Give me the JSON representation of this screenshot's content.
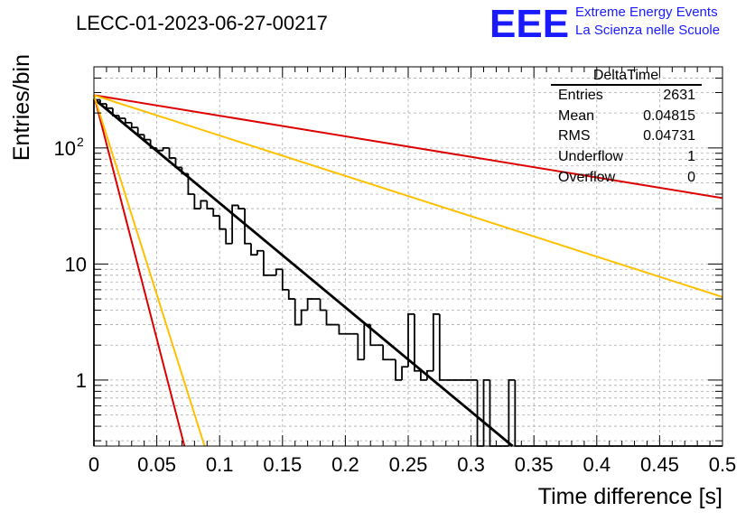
{
  "header": {
    "run_title": "LECC-01-2023-06-27-00217",
    "logo_text": "EEE",
    "logo_line1": "Extreme Energy Events",
    "logo_line2": "La Scienza nelle Scuole",
    "logo_color": "#1a1aff"
  },
  "stats_box": {
    "title": "DeltaTime",
    "rows": [
      {
        "label": "Entries",
        "value": "2631"
      },
      {
        "label": "Mean",
        "value": "0.04815"
      },
      {
        "label": "RMS",
        "value": "0.04731"
      },
      {
        "label": "Underflow",
        "value": "1"
      },
      {
        "label": "Overflow",
        "value": "0"
      }
    ]
  },
  "chart_data": {
    "type": "histogram",
    "title": "LECC-01-2023-06-27-00217",
    "xlabel": "Time difference [s]",
    "ylabel": "Entries/bin",
    "xlim": [
      0,
      0.5
    ],
    "ylim": [
      0.27,
      500
    ],
    "ylog": true,
    "grid": true,
    "x_ticks": [
      "0",
      "0.05",
      "0.1",
      "0.15",
      "0.2",
      "0.25",
      "0.3",
      "0.35",
      "0.4",
      "0.45",
      "0.5"
    ],
    "y_ticks": [
      {
        "value": 1,
        "label": "1"
      },
      {
        "value": 10,
        "label": "10"
      },
      {
        "value": 100,
        "label": "10",
        "exponent": "2"
      }
    ],
    "bin_width": 0.005,
    "histogram_bins": [
      260,
      240,
      220,
      190,
      180,
      165,
      150,
      130,
      118,
      100,
      95,
      100,
      82,
      68,
      60,
      40,
      30,
      35,
      30,
      26,
      20,
      15,
      32,
      30,
      15,
      12,
      13,
      8,
      8,
      9,
      6,
      5,
      3,
      4,
      5,
      5,
      4,
      3,
      3,
      2.5,
      2.5,
      2.5,
      1.5,
      3,
      2,
      2,
      1.5,
      1.5,
      1,
      1.3,
      3.7,
      1.2,
      1,
      1.2,
      3.7,
      1,
      1,
      1,
      1,
      1,
      1,
      0,
      1,
      0,
      0,
      0,
      1,
      0,
      0,
      0,
      0,
      0,
      0,
      0,
      0,
      0,
      0,
      0,
      0,
      0,
      0,
      0,
      0,
      0,
      0,
      0,
      0,
      0,
      0,
      0,
      0,
      0,
      0,
      0,
      0,
      0,
      0,
      0,
      0,
      0
    ],
    "lines": [
      {
        "color": "#000000",
        "points": [
          [
            0,
            265
          ],
          [
            0.333,
            0.27
          ]
        ]
      },
      {
        "color": "#dd0000",
        "points": [
          [
            0,
            285
          ],
          [
            0.5,
            37
          ]
        ]
      },
      {
        "color": "#ffc000",
        "points": [
          [
            0,
            285
          ],
          [
            0.5,
            5.2
          ]
        ]
      },
      {
        "color": "#dd0000",
        "points": [
          [
            0,
            285
          ],
          [
            0.072,
            0.27
          ]
        ]
      },
      {
        "color": "#ffc000",
        "points": [
          [
            0,
            285
          ],
          [
            0.088,
            0.27
          ]
        ]
      }
    ]
  }
}
